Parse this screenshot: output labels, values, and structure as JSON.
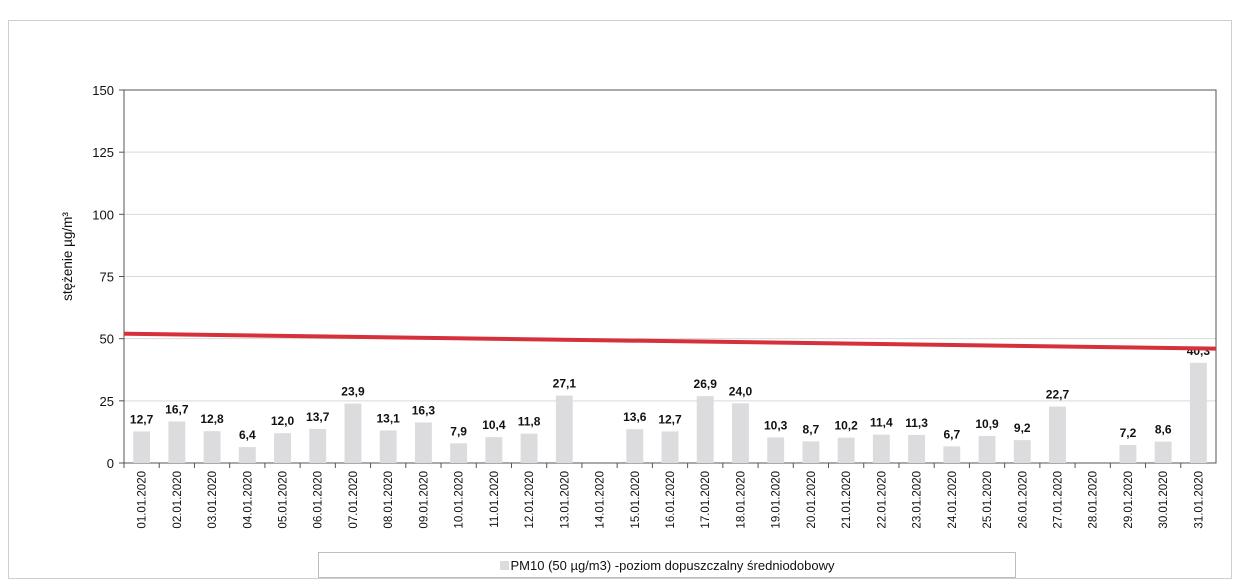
{
  "chart_data": {
    "type": "bar",
    "title": "",
    "ylabel": "stężenie µg/m³",
    "xlabel": "",
    "ylim": [
      0,
      150
    ],
    "yticks": [
      0,
      25,
      50,
      75,
      100,
      125,
      150
    ],
    "grid": true,
    "legend_position": "bottom",
    "bar_color": "#dcdcdf",
    "limit_line": {
      "value_start": 52,
      "value_end": 46,
      "color": "#d6303a"
    },
    "categories": [
      "01.01.2020",
      "02.01.2020",
      "03.01.2020",
      "04.01.2020",
      "05.01.2020",
      "06.01.2020",
      "07.01.2020",
      "08.01.2020",
      "09.01.2020",
      "10.01.2020",
      "11.01.2020",
      "12.01.2020",
      "13.01.2020",
      "14.01.2020",
      "15.01.2020",
      "16.01.2020",
      "17.01.2020",
      "18.01.2020",
      "19.01.2020",
      "20.01.2020",
      "21.01.2020",
      "22.01.2020",
      "23.01.2020",
      "24.01.2020",
      "25.01.2020",
      "26.01.2020",
      "27.01.2020",
      "28.01.2020",
      "29.01.2020",
      "30.01.2020",
      "31.01.2020"
    ],
    "series": [
      {
        "name": "PM10 (50 µg/m3) -poziom dopuszczalny średniodobowy",
        "values": [
          12.7,
          16.7,
          12.8,
          6.4,
          12.0,
          13.7,
          23.9,
          13.1,
          16.3,
          7.9,
          10.4,
          11.8,
          27.1,
          null,
          13.6,
          12.7,
          26.9,
          24.0,
          10.3,
          8.7,
          10.2,
          11.4,
          11.3,
          6.7,
          10.9,
          9.2,
          22.7,
          null,
          7.2,
          8.6,
          40.3
        ],
        "labels": [
          "12,7",
          "16,7",
          "12,8",
          "6,4",
          "12,0",
          "13,7",
          "23,9",
          "13,1",
          "16,3",
          "7,9",
          "10,4",
          "11,8",
          "27,1",
          "",
          "13,6",
          "12,7",
          "26,9",
          "24,0",
          "10,3",
          "8,7",
          "10,2",
          "11,4",
          "11,3",
          "6,7",
          "10,9",
          "9,2",
          "22,7",
          "",
          "7,2",
          "8,6",
          "40,3"
        ]
      }
    ]
  },
  "legend": {
    "text": "PM10 (50 µg/m3) -poziom dopuszczalny średniodobowy"
  }
}
